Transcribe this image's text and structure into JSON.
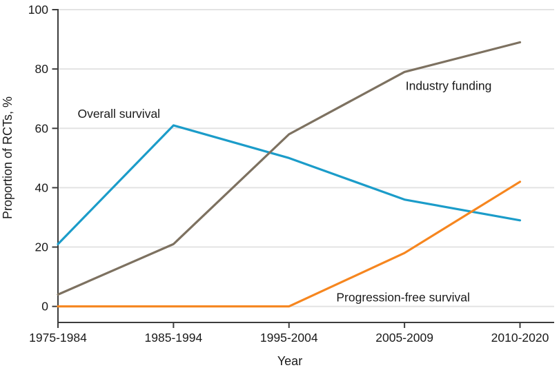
{
  "chart_data": {
    "type": "line",
    "title": "",
    "xlabel": "Year",
    "ylabel": "Proportion of RCTs, %",
    "categories": [
      "1975-1984",
      "1985-1994",
      "1995-2004",
      "2005-2009",
      "2010-2020"
    ],
    "series": [
      {
        "name": "Overall survival",
        "color": "#1B9CC9",
        "values": [
          21,
          61,
          50,
          36,
          29
        ]
      },
      {
        "name": "Industry funding",
        "color": "#7D7160",
        "values": [
          4,
          21,
          58,
          79,
          89
        ]
      },
      {
        "name": "Progression-free survival",
        "color": "#F6861F",
        "values": [
          0,
          0,
          0,
          18,
          42
        ]
      }
    ],
    "annotations": [
      {
        "text": "Overall survival",
        "x": 0.17,
        "y": 63.5
      },
      {
        "text": "Industry funding",
        "x": 3.01,
        "y": 73.0
      },
      {
        "text": "Progression-free survival",
        "x": 2.41,
        "y": 1.7
      }
    ],
    "ylim": [
      0,
      100
    ],
    "yticks": [
      0,
      20,
      40,
      60,
      80,
      100
    ],
    "grid": "horizontal",
    "legend": "inline line labels (no legend box)"
  },
  "colors": {
    "overall_survival": "#1B9CC9",
    "industry_funding": "#7D7160",
    "progression_free_survival": "#F6861F",
    "gridline": "#E3E3E3",
    "axis": "#3C3C3C",
    "text": "#1A1A1A",
    "background": "#FFFFFF"
  }
}
